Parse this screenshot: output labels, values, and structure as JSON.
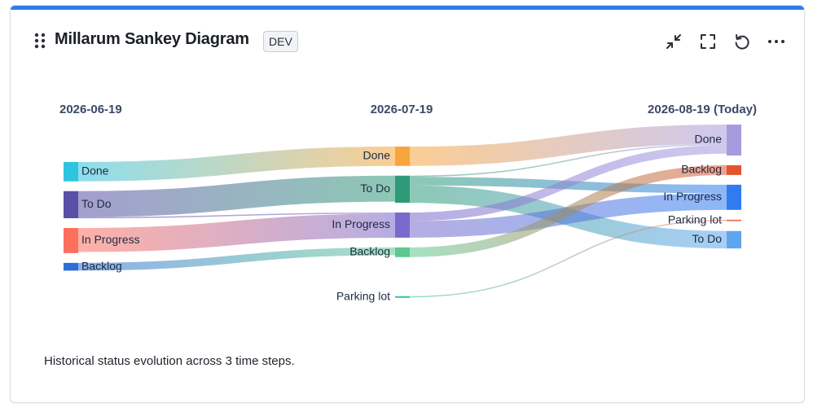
{
  "card": {
    "title": "Millarum Sankey Diagram",
    "badge": "DEV",
    "caption": "Historical status evolution across 3 time steps.",
    "accent_color": "#2f7ce8"
  },
  "toolbar": {
    "icons": [
      "collapse-icon",
      "fullscreen-icon",
      "refresh-icon",
      "more-icon"
    ]
  },
  "chart_data": {
    "type": "sankey",
    "columns": [
      {
        "label": "2026-06-19"
      },
      {
        "label": "2026-07-19"
      },
      {
        "label": "2026-08-19 (Today)"
      }
    ],
    "nodes": [
      {
        "id": "done-0",
        "col": 0,
        "name": "Done",
        "value": 5,
        "color": "#2ec4de"
      },
      {
        "id": "todo-0",
        "col": 0,
        "name": "To Do",
        "value": 7,
        "color": "#5a4fa6"
      },
      {
        "id": "inprogress-0",
        "col": 0,
        "name": "In Progress",
        "value": 6.5,
        "color": "#ff6f5e"
      },
      {
        "id": "backlog-0",
        "col": 0,
        "name": "Backlog",
        "value": 2,
        "color": "#2d6fd6"
      },
      {
        "id": "done-1",
        "col": 1,
        "name": "Done",
        "value": 5,
        "color": "#f7a53c"
      },
      {
        "id": "todo-1",
        "col": 1,
        "name": "To Do",
        "value": 7,
        "color": "#2f9a78"
      },
      {
        "id": "inprogress-1",
        "col": 1,
        "name": "In Progress",
        "value": 6.5,
        "color": "#7a6acc"
      },
      {
        "id": "backlog-1",
        "col": 1,
        "name": "Backlog",
        "value": 2.5,
        "color": "#5dc890"
      },
      {
        "id": "parking-1",
        "col": 1,
        "name": "Parking lot",
        "value": 0.3,
        "color": "#2ec4a0"
      },
      {
        "id": "done-2",
        "col": 2,
        "name": "Done",
        "value": 8,
        "color": "#a79be0"
      },
      {
        "id": "backlog-2",
        "col": 2,
        "name": "Backlog",
        "value": 2.5,
        "color": "#e5532f"
      },
      {
        "id": "inprogress-2",
        "col": 2,
        "name": "In Progress",
        "value": 6.5,
        "color": "#2f7cf0"
      },
      {
        "id": "parking-2",
        "col": 2,
        "name": "Parking lot",
        "value": 0.3,
        "color": "#f27c6e"
      },
      {
        "id": "todo-2",
        "col": 2,
        "name": "To Do",
        "value": 4.5,
        "color": "#5fa6f0"
      }
    ],
    "links": [
      {
        "source": "done-0",
        "target": "done-1",
        "value": 5
      },
      {
        "source": "todo-0",
        "target": "todo-1",
        "value": 6.7
      },
      {
        "source": "todo-0",
        "target": "inprogress-1",
        "value": 0.3
      },
      {
        "source": "inprogress-0",
        "target": "inprogress-1",
        "value": 6.2
      },
      {
        "source": "backlog-0",
        "target": "backlog-1",
        "value": 2
      },
      {
        "source": "done-1",
        "target": "done-2",
        "value": 5
      },
      {
        "source": "todo-1",
        "target": "done-2",
        "value": 0.3
      },
      {
        "source": "todo-1",
        "target": "inprogress-2",
        "value": 2.2
      },
      {
        "source": "todo-1",
        "target": "todo-2",
        "value": 4.5
      },
      {
        "source": "inprogress-1",
        "target": "done-2",
        "value": 2.2
      },
      {
        "source": "inprogress-1",
        "target": "inprogress-2",
        "value": 4.3
      },
      {
        "source": "backlog-1",
        "target": "backlog-2",
        "value": 2.5
      },
      {
        "source": "parking-1",
        "target": "parking-2",
        "value": 0.3
      }
    ]
  }
}
